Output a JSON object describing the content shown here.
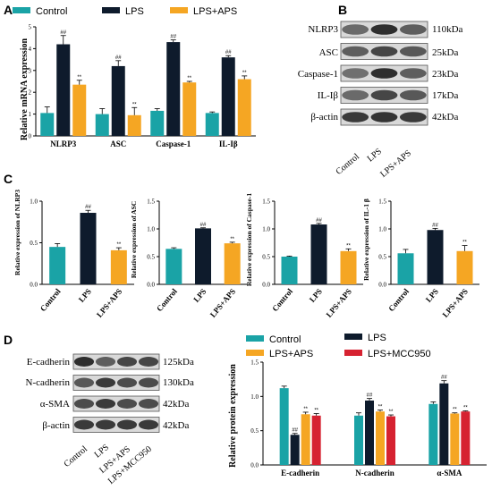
{
  "colors": {
    "control": "#1aa3a6",
    "lps": "#0e1b2c",
    "lps_aps": "#f5a623",
    "lps_mcc950": "#d62231"
  },
  "panel_labels": {
    "A": "A",
    "B": "B",
    "C": "C",
    "D": "D"
  },
  "chart_data": [
    {
      "id": "A",
      "type": "bar",
      "ylabel": "Relative mRNA expression",
      "ylim": [
        0,
        5
      ],
      "yticks": [
        "0",
        "1",
        "2",
        "3",
        "4",
        "5"
      ],
      "categories": [
        "NLRP3",
        "ASC",
        "Caspase-1",
        "IL-Iβ"
      ],
      "series": [
        {
          "name": "Control",
          "values": [
            1.05,
            1.0,
            1.15,
            1.05
          ],
          "errors": [
            0.28,
            0.25,
            0.1,
            0.05
          ],
          "sig": [
            "",
            "",
            "",
            ""
          ]
        },
        {
          "name": "LPS",
          "values": [
            4.2,
            3.2,
            4.3,
            3.6
          ],
          "errors": [
            0.4,
            0.25,
            0.1,
            0.08
          ],
          "sig": [
            "##",
            "##",
            "##",
            "##"
          ]
        },
        {
          "name": "LPS+APS",
          "values": [
            2.35,
            0.95,
            2.45,
            2.6
          ],
          "errors": [
            0.2,
            0.35,
            0.05,
            0.15
          ],
          "sig": [
            "**",
            "**",
            "**",
            "**"
          ]
        }
      ]
    },
    {
      "id": "C1",
      "type": "bar",
      "ylabel": "Relative expression of NLRP3",
      "ylim": [
        0,
        1.0
      ],
      "yticks": [
        "0.0",
        "0.5",
        "1.0"
      ],
      "categories": [
        "Control",
        "LPS",
        "LPS+APS"
      ],
      "values": [
        0.45,
        0.86,
        0.41
      ],
      "errors": [
        0.04,
        0.03,
        0.03
      ],
      "sig": [
        "",
        "##",
        "**"
      ]
    },
    {
      "id": "C2",
      "type": "bar",
      "ylabel": "Relative expression of ASC",
      "ylim": [
        0,
        1.5
      ],
      "yticks": [
        "0.0",
        "0.5",
        "1.0",
        "1.5"
      ],
      "categories": [
        "Control",
        "LPS",
        "LPS+APS"
      ],
      "values": [
        0.64,
        1.01,
        0.74
      ],
      "errors": [
        0.02,
        0.01,
        0.02
      ],
      "sig": [
        "",
        "##",
        "**"
      ]
    },
    {
      "id": "C3",
      "type": "bar",
      "ylabel": "Relative expression of Caspase-1",
      "ylim": [
        0,
        1.5
      ],
      "yticks": [
        "0.0",
        "0.5",
        "1.0",
        "1.5"
      ],
      "categories": [
        "Control",
        "LPS",
        "LPS+APS"
      ],
      "values": [
        0.5,
        1.08,
        0.6
      ],
      "errors": [
        0.01,
        0.02,
        0.04
      ],
      "sig": [
        "",
        "##",
        "**"
      ]
    },
    {
      "id": "C4",
      "type": "bar",
      "ylabel": "Relative expression of IL-1 β",
      "ylim": [
        0,
        1.5
      ],
      "yticks": [
        "0.0",
        "0.5",
        "1.0",
        "1.5"
      ],
      "categories": [
        "Control",
        "LPS",
        "LPS+APS"
      ],
      "values": [
        0.56,
        0.98,
        0.6
      ],
      "errors": [
        0.07,
        0.03,
        0.1
      ],
      "sig": [
        "",
        "##",
        "**"
      ]
    },
    {
      "id": "D",
      "type": "bar",
      "ylabel": "Relative protein expression",
      "ylim": [
        0,
        1.5
      ],
      "yticks": [
        "0.0",
        "0.5",
        "1.0",
        "1.5"
      ],
      "categories": [
        "E-cadherin",
        "N-cadherin",
        "α-SMA"
      ],
      "series": [
        {
          "name": "Control",
          "values": [
            1.12,
            0.72,
            0.89
          ],
          "errors": [
            0.03,
            0.04,
            0.03
          ],
          "sig": [
            "",
            "",
            ""
          ]
        },
        {
          "name": "LPS",
          "values": [
            0.44,
            0.94,
            1.19
          ],
          "errors": [
            0.02,
            0.03,
            0.04
          ],
          "sig": [
            "##",
            "##",
            "##"
          ]
        },
        {
          "name": "LPS+APS",
          "values": [
            0.74,
            0.78,
            0.75
          ],
          "errors": [
            0.03,
            0.02,
            0.01
          ],
          "sig": [
            "**",
            "**",
            "**"
          ]
        },
        {
          "name": "LPS+MCC950",
          "values": [
            0.72,
            0.71,
            0.78
          ],
          "errors": [
            0.03,
            0.02,
            0.01
          ],
          "sig": [
            "**",
            "**",
            "**"
          ]
        }
      ]
    }
  ],
  "blot_B": {
    "rows": [
      {
        "protein": "NLRP3",
        "size": "110kDa"
      },
      {
        "protein": "ASC",
        "size": "25kDa"
      },
      {
        "protein": "Caspase-1",
        "size": "23kDa"
      },
      {
        "protein": "IL-Iβ",
        "size": "17kDa"
      },
      {
        "protein": "β-actin",
        "size": "42kDa"
      }
    ],
    "lanes": [
      "Control",
      "LPS",
      "LPS+APS"
    ]
  },
  "blot_D": {
    "rows": [
      {
        "protein": "E-cadherin",
        "size": "125kDa"
      },
      {
        "protein": "N-cadherin",
        "size": "130kDa"
      },
      {
        "protein": "α-SMA",
        "size": "42kDa"
      },
      {
        "protein": "β-actin",
        "size": "42kDa"
      }
    ],
    "lanes": [
      "Control",
      "LPS",
      "LPS+APS",
      "LPS+MCC950"
    ]
  }
}
